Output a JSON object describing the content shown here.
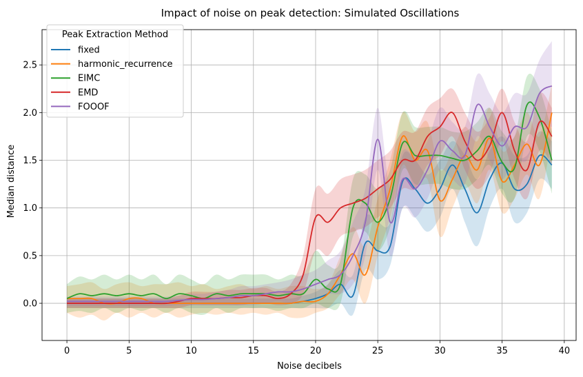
{
  "chart_data": {
    "type": "line",
    "title": "Impact of noise on peak detection: Simulated Oscillations",
    "xlabel": "Noise decibels",
    "ylabel": "Median distance",
    "xlim": [
      -2,
      40.95
    ],
    "ylim": [
      -0.39,
      2.87
    ],
    "xticks": [
      "0",
      "5",
      "10",
      "15",
      "20",
      "25",
      "30",
      "35",
      "40"
    ],
    "yticks": [
      "0.0",
      "0.5",
      "1.0",
      "1.5",
      "2.0",
      "2.5"
    ],
    "grid": true,
    "legend_title": "Peak Extraction Method",
    "legend_position": "top-left",
    "x": [
      0,
      1,
      2,
      3,
      4,
      5,
      6,
      7,
      8,
      9,
      10,
      11,
      12,
      13,
      14,
      15,
      16,
      17,
      18,
      19,
      20,
      21,
      22,
      23,
      24,
      25,
      26,
      27,
      28,
      29,
      30,
      31,
      32,
      33,
      34,
      35,
      36,
      37,
      38,
      39
    ],
    "series": [
      {
        "name": "fixed",
        "color": "#1f77b4",
        "values": [
          0,
          0,
          0,
          0,
          0,
          0,
          0,
          0,
          0,
          0,
          0,
          0,
          0,
          0,
          0,
          0,
          0,
          0,
          0,
          0.02,
          0.05,
          0.1,
          0.2,
          0.08,
          0.63,
          0.55,
          0.6,
          1.28,
          1.2,
          1.05,
          1.2,
          1.45,
          1.2,
          0.95,
          1.3,
          1.47,
          1.2,
          1.25,
          1.55,
          1.45
        ],
        "lower": [
          -0.05,
          -0.05,
          -0.05,
          -0.05,
          -0.05,
          -0.05,
          -0.05,
          -0.05,
          -0.05,
          -0.05,
          -0.05,
          -0.05,
          -0.05,
          -0.05,
          -0.05,
          -0.05,
          -0.05,
          -0.05,
          -0.05,
          -0.05,
          -0.05,
          -0.05,
          0.0,
          -0.12,
          0.35,
          0.25,
          0.4,
          1.0,
          0.9,
          0.75,
          0.9,
          1.2,
          0.85,
          0.6,
          1.0,
          1.2,
          0.85,
          0.95,
          1.3,
          1.2
        ],
        "upper": [
          0.05,
          0.05,
          0.05,
          0.05,
          0.05,
          0.05,
          0.05,
          0.05,
          0.05,
          0.05,
          0.05,
          0.05,
          0.05,
          0.05,
          0.05,
          0.05,
          0.05,
          0.05,
          0.05,
          0.08,
          0.12,
          0.2,
          0.35,
          0.3,
          0.9,
          0.85,
          0.85,
          1.55,
          1.5,
          1.35,
          1.5,
          1.7,
          1.55,
          1.3,
          1.6,
          1.75,
          1.55,
          1.55,
          1.8,
          1.7
        ]
      },
      {
        "name": "harmonic_recurrence",
        "color": "#ff7f0e",
        "values": [
          0.05,
          0.05,
          0.05,
          0,
          0,
          0.05,
          0.05,
          0,
          0,
          0,
          0,
          0,
          0,
          0,
          0,
          0,
          0,
          0,
          0,
          0.02,
          0.02,
          0.1,
          0.3,
          0.52,
          0.3,
          0.8,
          1.2,
          1.75,
          1.5,
          1.6,
          1.08,
          1.3,
          1.55,
          1.4,
          1.73,
          1.28,
          1.45,
          1.67,
          1.45,
          2.0
        ],
        "lower": [
          -0.1,
          -0.15,
          -0.12,
          -0.18,
          -0.1,
          -0.15,
          -0.1,
          -0.15,
          -0.1,
          -0.15,
          -0.12,
          -0.1,
          -0.12,
          -0.1,
          -0.12,
          -0.1,
          -0.12,
          -0.1,
          -0.15,
          -0.15,
          -0.1,
          -0.05,
          0.1,
          0.25,
          0.0,
          0.5,
          0.9,
          1.45,
          1.2,
          1.3,
          0.7,
          1.0,
          1.25,
          1.05,
          1.4,
          0.95,
          1.1,
          1.35,
          1.1,
          1.75
        ],
        "upper": [
          0.18,
          0.2,
          0.22,
          0.15,
          0.2,
          0.22,
          0.18,
          0.2,
          0.2,
          0.22,
          0.18,
          0.2,
          0.15,
          0.18,
          0.2,
          0.15,
          0.18,
          0.15,
          0.18,
          0.18,
          0.15,
          0.2,
          0.5,
          0.8,
          0.6,
          1.1,
          1.5,
          2.0,
          1.8,
          1.9,
          1.4,
          1.6,
          1.85,
          1.7,
          2.05,
          1.6,
          1.75,
          2.0,
          1.75,
          2.3
        ]
      },
      {
        "name": "EIMC",
        "color": "#2ca02c",
        "values": [
          0.05,
          0.1,
          0.08,
          0.1,
          0.08,
          0.1,
          0.08,
          0.1,
          0.05,
          0.1,
          0.08,
          0.05,
          0.1,
          0.08,
          0.1,
          0.1,
          0.1,
          0.08,
          0.1,
          0.1,
          0.25,
          0.15,
          0.2,
          1.0,
          1.05,
          0.85,
          1.1,
          1.68,
          1.55,
          1.55,
          1.55,
          1.52,
          1.5,
          1.6,
          1.75,
          1.48,
          1.42,
          2.08,
          1.95,
          1.5
        ],
        "lower": [
          -0.1,
          -0.08,
          -0.1,
          -0.05,
          -0.1,
          -0.05,
          -0.08,
          -0.05,
          -0.1,
          -0.05,
          -0.1,
          -0.12,
          -0.05,
          -0.1,
          -0.05,
          -0.05,
          -0.05,
          -0.08,
          -0.05,
          -0.05,
          0.0,
          -0.05,
          0.0,
          0.7,
          0.75,
          0.55,
          0.8,
          1.4,
          1.25,
          1.25,
          1.25,
          1.2,
          1.2,
          1.3,
          1.45,
          1.15,
          1.1,
          1.75,
          1.6,
          1.15
        ],
        "upper": [
          0.2,
          0.28,
          0.25,
          0.3,
          0.25,
          0.3,
          0.25,
          0.3,
          0.2,
          0.3,
          0.25,
          0.2,
          0.3,
          0.25,
          0.3,
          0.3,
          0.3,
          0.25,
          0.3,
          0.3,
          0.55,
          0.4,
          0.45,
          1.3,
          1.35,
          1.2,
          1.4,
          2.0,
          1.85,
          1.85,
          1.85,
          1.8,
          1.8,
          1.9,
          2.05,
          1.8,
          1.75,
          2.38,
          2.25,
          1.8
        ]
      },
      {
        "name": "EMD",
        "color": "#d62728",
        "values": [
          0,
          0,
          0,
          0,
          0,
          0,
          0,
          0,
          0,
          0.02,
          0.05,
          0.05,
          0.05,
          0.06,
          0.06,
          0.08,
          0.08,
          0.05,
          0.1,
          0.3,
          0.9,
          0.85,
          1.0,
          1.05,
          1.1,
          1.2,
          1.3,
          1.5,
          1.5,
          1.75,
          1.85,
          2.0,
          1.7,
          1.5,
          1.65,
          2.0,
          1.6,
          1.4,
          1.9,
          1.75
        ],
        "lower": [
          -0.05,
          -0.05,
          -0.05,
          -0.05,
          -0.05,
          -0.05,
          -0.05,
          -0.05,
          -0.05,
          -0.05,
          -0.02,
          -0.02,
          -0.02,
          -0.02,
          -0.02,
          0.0,
          0.0,
          -0.02,
          0.0,
          0.1,
          0.55,
          0.5,
          0.7,
          0.75,
          0.8,
          0.9,
          1.0,
          1.2,
          1.2,
          1.45,
          1.55,
          1.75,
          1.4,
          1.2,
          1.35,
          1.7,
          1.3,
          1.1,
          1.6,
          1.45
        ],
        "upper": [
          0.05,
          0.05,
          0.05,
          0.05,
          0.05,
          0.05,
          0.05,
          0.05,
          0.05,
          0.08,
          0.12,
          0.12,
          0.12,
          0.14,
          0.14,
          0.16,
          0.16,
          0.12,
          0.2,
          0.5,
          1.2,
          1.15,
          1.3,
          1.35,
          1.4,
          1.5,
          1.6,
          1.8,
          1.8,
          2.05,
          2.15,
          2.25,
          2.0,
          1.8,
          1.95,
          2.25,
          1.9,
          1.7,
          2.2,
          2.05
        ]
      },
      {
        "name": "FOOOF",
        "color": "#9467bd",
        "values": [
          0.02,
          0.02,
          0.02,
          0.02,
          0.02,
          0.02,
          0.02,
          0.02,
          0.02,
          0.03,
          0.04,
          0.04,
          0.05,
          0.06,
          0.08,
          0.08,
          0.1,
          0.12,
          0.12,
          0.15,
          0.2,
          0.25,
          0.3,
          0.5,
          0.85,
          1.72,
          0.85,
          1.3,
          1.2,
          1.4,
          1.7,
          1.6,
          1.55,
          2.08,
          1.85,
          1.65,
          1.85,
          1.85,
          2.2,
          2.28
        ],
        "lower": [
          -0.03,
          -0.03,
          -0.03,
          -0.03,
          -0.03,
          -0.03,
          -0.03,
          -0.03,
          -0.03,
          -0.02,
          -0.02,
          -0.02,
          -0.02,
          -0.02,
          -0.02,
          -0.02,
          0.0,
          0.02,
          0.0,
          0.02,
          0.05,
          0.1,
          0.1,
          0.2,
          0.5,
          1.4,
          0.5,
          1.0,
          0.9,
          1.1,
          1.4,
          1.3,
          1.25,
          1.75,
          1.5,
          1.3,
          1.5,
          1.5,
          1.85,
          1.85
        ],
        "upper": [
          0.07,
          0.07,
          0.07,
          0.07,
          0.07,
          0.07,
          0.07,
          0.07,
          0.07,
          0.08,
          0.1,
          0.1,
          0.12,
          0.14,
          0.18,
          0.18,
          0.2,
          0.22,
          0.25,
          0.3,
          0.35,
          0.45,
          0.55,
          0.85,
          1.2,
          2.05,
          1.2,
          1.6,
          1.55,
          1.7,
          2.05,
          1.9,
          1.85,
          2.4,
          2.2,
          2.0,
          2.2,
          2.2,
          2.55,
          2.75
        ]
      }
    ]
  }
}
